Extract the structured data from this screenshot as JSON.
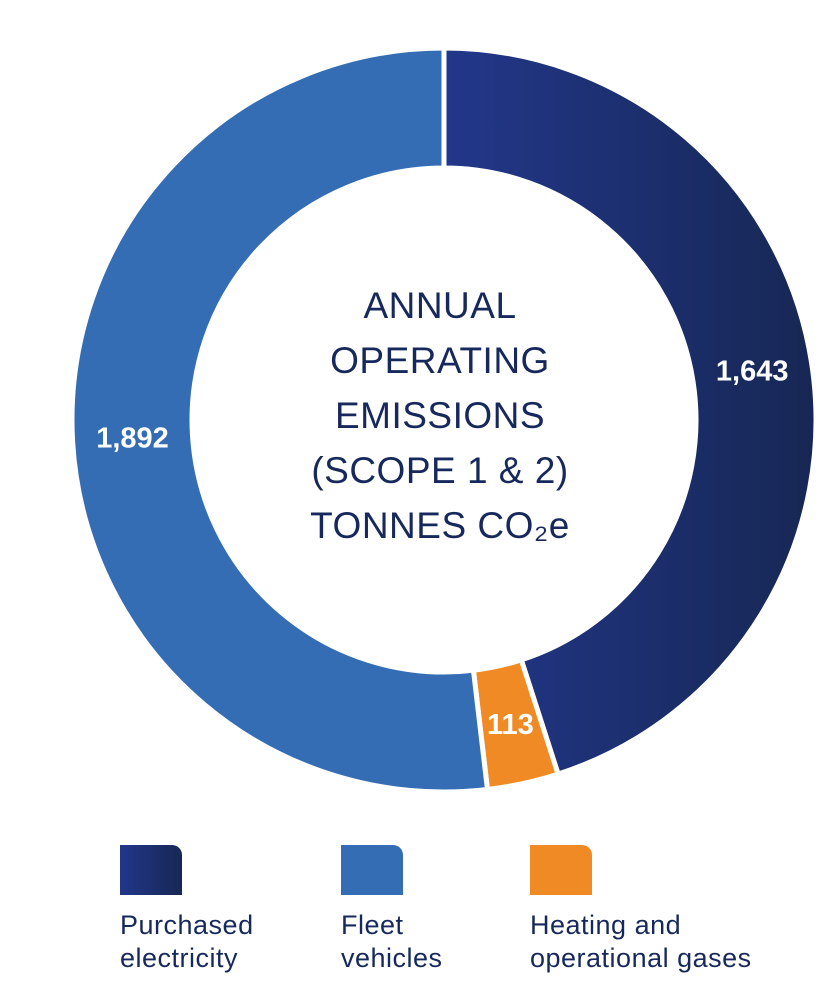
{
  "chart_data": {
    "type": "pie",
    "title_lines": [
      "ANNUAL",
      "OPERATING",
      "EMISSIONS",
      "(SCOPE 1 & 2)",
      "TONNES CO₂e"
    ],
    "slices": [
      {
        "name": "Purchased electricity",
        "value": 1643,
        "label": "1,643",
        "color": "#1f3580",
        "color_dark": "#182a58"
      },
      {
        "name": "Heating and operational gases",
        "value": 113,
        "label": "113",
        "color": "#f08a24",
        "color_dark": "#f08a24"
      },
      {
        "name": "Fleet vehicles",
        "value": 1892,
        "label": "1,892",
        "color": "#346db4",
        "color_dark": "#346db4"
      }
    ]
  },
  "legend": [
    {
      "key": "purchased-electricity",
      "lines": [
        "Purchased",
        "electricity"
      ],
      "color": "#1f3580"
    },
    {
      "key": "fleet-vehicles",
      "lines": [
        "Fleet",
        "vehicles"
      ],
      "color": "#346db4"
    },
    {
      "key": "heating-and-operational-gases",
      "lines": [
        "Heating and",
        "operational gases"
      ],
      "color": "#f08a24"
    }
  ]
}
